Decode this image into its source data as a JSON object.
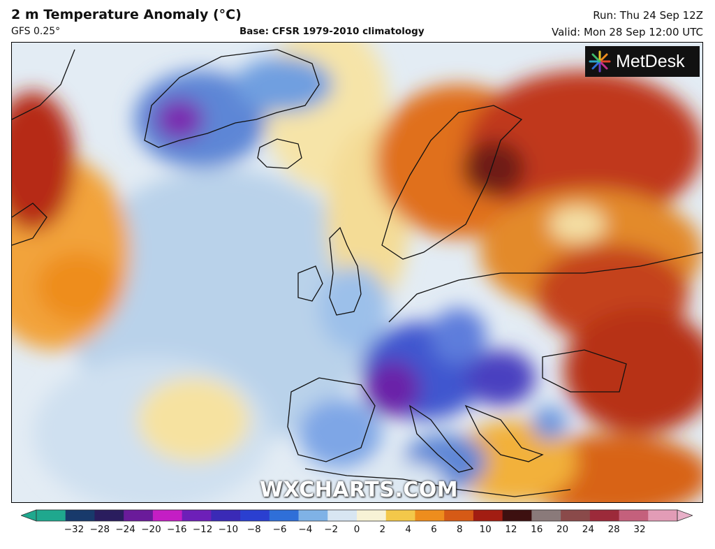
{
  "header": {
    "title": "2 m Temperature Anomaly (°C)",
    "model": "GFS 0.25°",
    "base": "Base: CFSR 1979-2010 climatology",
    "run": "Run: Thu 24 Sep 12Z",
    "valid": "Valid: Mon 28 Sep 12:00 UTC"
  },
  "logo": {
    "text": "MetDesk"
  },
  "watermark": "WXCHARTS.COM",
  "colorbar": {
    "ticks": [
      "−32",
      "−28",
      "−24",
      "−20",
      "−16",
      "−12",
      "−10",
      "−8",
      "−6",
      "−4",
      "−2",
      "0",
      "2",
      "4",
      "6",
      "8",
      "10",
      "12",
      "16",
      "20",
      "24",
      "28",
      "32"
    ],
    "colors": [
      "#1fa88e",
      "#183a6b",
      "#2a1d5e",
      "#6a1b9a",
      "#c41ec4",
      "#6d1fb8",
      "#3a2ab6",
      "#2a3fd0",
      "#2f6fd8",
      "#7fb2e6",
      "#d8e6f2",
      "#f7f2d6",
      "#f3c84a",
      "#ee8d1d",
      "#d65a16",
      "#a21d12",
      "#3d1010",
      "#8a7a7a",
      "#8a4a4a",
      "#9c2a3a",
      "#c4607c",
      "#e29cb6"
    ],
    "end_colors": {
      "left": "#1fa88e",
      "right": "#e8b0c8"
    }
  }
}
